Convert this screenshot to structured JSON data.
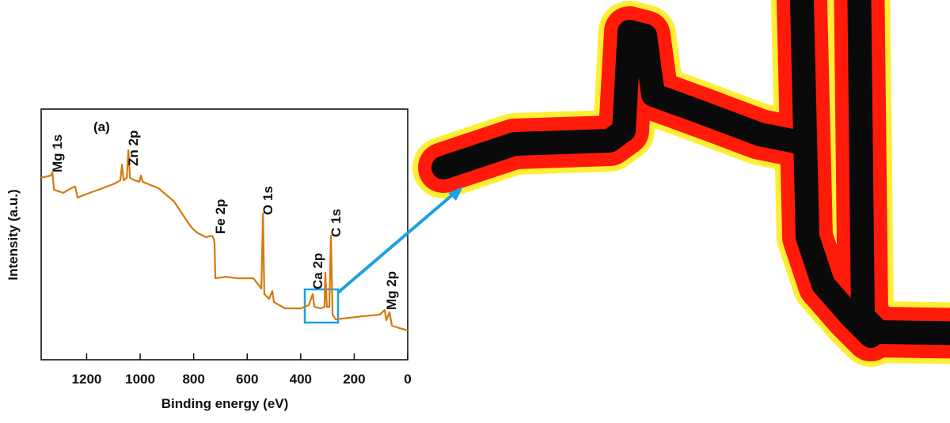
{
  "chart_data": {
    "type": "line",
    "xlabel": "Binding energy (eV)",
    "ylabel": "Intensity (a.u.)",
    "panel_label": "(a)",
    "xlim": [
      1370,
      0
    ],
    "xticks": [
      1200,
      1000,
      800,
      600,
      400,
      200,
      0
    ],
    "ylim": [
      0,
      100
    ],
    "x": [
      1370,
      1334,
      1328,
      1322,
      1287,
      1257,
      1243,
      1234,
      1198,
      1139,
      1095,
      1074,
      1068,
      1062,
      1050,
      1044,
      1038,
      1021,
      1003,
      997,
      991,
      932,
      873,
      814,
      802,
      784,
      754,
      731,
      725,
      722,
      719,
      680,
      636,
      577,
      547,
      541,
      536,
      518,
      506,
      500,
      459,
      399,
      370,
      355,
      349,
      325,
      311,
      308,
      302,
      293,
      287,
      281,
      269,
      222,
      163,
      104,
      86,
      80,
      68,
      59,
      30,
      0
    ],
    "series": [
      {
        "color": "#d4790e",
        "values": [
          72.6,
          73.5,
          74.8,
          67.8,
          66.6,
          68.5,
          69.1,
          64.7,
          66.2,
          68.5,
          70.3,
          71.6,
          77.9,
          71.6,
          72.6,
          83.6,
          72.6,
          71.6,
          71.0,
          73.5,
          71.0,
          68.5,
          63.1,
          53.6,
          52.1,
          50.5,
          48.9,
          49.5,
          48.3,
          46.4,
          32.5,
          33.1,
          32.5,
          32.5,
          28.4,
          58.4,
          26.2,
          24.3,
          27.4,
          23.0,
          20.5,
          20.5,
          21.8,
          26.2,
          21.1,
          20.5,
          21.1,
          34.7,
          21.1,
          21.1,
          49.5,
          18.0,
          16.1,
          16.7,
          17.4,
          18.0,
          19.9,
          15.8,
          18.9,
          13.6,
          12.6,
          11.7
        ]
      }
    ],
    "annotations": [
      {
        "text": "Mg 1s",
        "x": 1328
      },
      {
        "text": "Zn 2p",
        "x": 1044
      },
      {
        "text": "Fe 2p",
        "x": 719
      },
      {
        "text": "O 1s",
        "x": 541
      },
      {
        "text": "Ca 2p",
        "x": 355
      },
      {
        "text": "C 1s",
        "x": 287
      },
      {
        "text": "Mg 2p",
        "x": 80
      }
    ]
  }
}
